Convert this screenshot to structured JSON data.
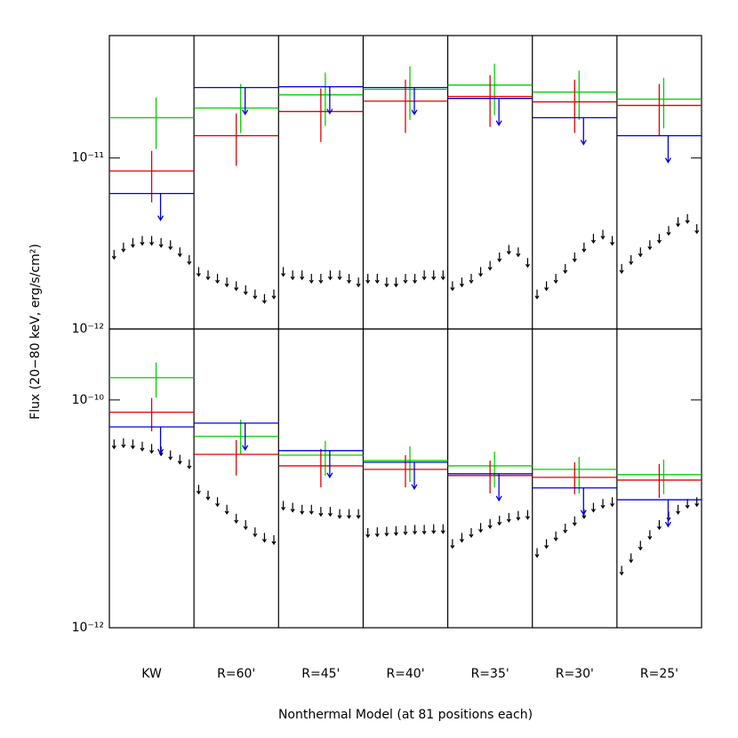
{
  "chart_data": [
    {
      "type": "errorbar",
      "log": true,
      "ylabel": "Flux (20−80 keV, erg/s/cm²)",
      "ylim": [
        1e-12,
        5.2e-11
      ],
      "yticks": [
        {
          "value": 1e-12,
          "label": "10⁻¹²"
        },
        {
          "value": 1e-11,
          "label": "10⁻¹¹"
        }
      ],
      "series": [
        {
          "color": "#00d000",
          "values": [
            1.72e-11,
            1.96e-11,
            2.34e-11,
            2.52e-11,
            2.67e-11,
            2.43e-11,
            2.21e-11
          ],
          "errors": [
            [
              1.13e-11,
              2.26e-11
            ],
            [
              1.4e-11,
              2.71e-11
            ],
            [
              1.54e-11,
              3.16e-11
            ],
            [
              1.67e-11,
              3.44e-11
            ],
            [
              1.78e-11,
              3.56e-11
            ],
            [
              1.67e-11,
              3.24e-11
            ],
            [
              1.49e-11,
              2.94e-11
            ]
          ]
        },
        {
          "color": "#e00000",
          "values": [
            8.4e-12,
            1.35e-11,
            1.87e-11,
            2.15e-11,
            2.29e-11,
            2.13e-11,
            2.03e-11
          ],
          "errors": [
            [
              5.5e-12,
              1.1e-11
            ],
            [
              9e-12,
              1.82e-11
            ],
            [
              1.24e-11,
              2.55e-11
            ],
            [
              1.4e-11,
              2.87e-11
            ],
            [
              1.52e-11,
              3.05e-11
            ],
            [
              1.4e-11,
              2.87e-11
            ],
            [
              1.35e-11,
              2.71e-11
            ]
          ]
        },
        {
          "color": "#0000e0",
          "upper_limit": true,
          "values": [
            6.2e-12,
            2.58e-11,
            2.61e-11,
            2.58e-11,
            2.23e-11,
            1.72e-11,
            1.35e-11
          ]
        }
      ],
      "models": {
        "color": "#000000",
        "upper_limit": true,
        "values": [
          [
            2.9e-12,
            3.2e-12,
            3.4e-12,
            3.5e-12,
            3.5e-12,
            3.4e-12,
            3.3e-12,
            3e-12,
            2.7e-12
          ],
          [
            2.3e-12,
            2.2e-12,
            2.1e-12,
            2e-12,
            1.9e-12,
            1.8e-12,
            1.7e-12,
            1.6e-12,
            1.7e-12
          ],
          [
            2.3e-12,
            2.2e-12,
            2.2e-12,
            2.1e-12,
            2.1e-12,
            2.2e-12,
            2.2e-12,
            2.1e-12,
            2e-12
          ],
          [
            2.1e-12,
            2.1e-12,
            2e-12,
            2e-12,
            2.1e-12,
            2.1e-12,
            2.2e-12,
            2.2e-12,
            2.2e-12
          ],
          [
            1.9e-12,
            2e-12,
            2.1e-12,
            2.3e-12,
            2.5e-12,
            2.8e-12,
            3.1e-12,
            3e-12,
            2.6e-12
          ],
          [
            1.7e-12,
            1.9e-12,
            2.1e-12,
            2.4e-12,
            2.8e-12,
            3.2e-12,
            3.6e-12,
            3.8e-12,
            3.5e-12
          ],
          [
            2.4e-12,
            2.7e-12,
            3e-12,
            3.3e-12,
            3.6e-12,
            4e-12,
            4.5e-12,
            4.7e-12,
            4.1e-12
          ]
        ]
      }
    },
    {
      "type": "errorbar",
      "log": true,
      "xlabel": "Nonthermal Model (at 81 positions each)",
      "categories": [
        "KW",
        "R=60'",
        "R=45'",
        "R=40'",
        "R=35'",
        "R=30'",
        "R=25'"
      ],
      "ylim": [
        1e-12,
        4.2e-10
      ],
      "yticks": [
        {
          "value": 1e-12,
          "label": "10⁻¹²"
        },
        {
          "value": 1e-10,
          "label": "10⁻¹⁰"
        }
      ],
      "series": [
        {
          "color": "#00d000",
          "values": [
            1.57e-10,
            4.79e-11,
            3.28e-11,
            2.94e-11,
            2.64e-11,
            2.46e-11,
            2.21e-11
          ],
          "errors": [
            [
              1.05e-10,
              2.13e-10
            ],
            [
              3.3e-11,
              6.7e-11
            ],
            [
              2.17e-11,
              4.37e-11
            ],
            [
              1.91e-11,
              3.92e-11
            ],
            [
              1.71e-11,
              3.52e-11
            ],
            [
              1.51e-11,
              3.16e-11
            ],
            [
              1.49e-11,
              3e-11
            ]
          ]
        },
        {
          "color": "#e00000",
          "values": [
            7.8e-11,
            3.33e-11,
            2.64e-11,
            2.46e-11,
            2.17e-11,
            2.09e-11,
            1.98e-11
          ],
          "errors": [
            [
              5.3e-11,
              1.04e-10
            ],
            [
              2.17e-11,
              4.45e-11
            ],
            [
              1.71e-11,
              3.72e-11
            ],
            [
              1.71e-11,
              3.28e-11
            ],
            [
              1.51e-11,
              2.94e-11
            ],
            [
              1.49e-11,
              2.84e-11
            ],
            [
              1.38e-11,
              2.74e-11
            ]
          ]
        },
        {
          "color": "#0000e0",
          "upper_limit": true,
          "values": [
            5.8e-11,
            6.26e-11,
            3.59e-11,
            2.84e-11,
            2.25e-11,
            1.69e-11,
            1.33e-11
          ]
        }
      ],
      "models": {
        "color": "#000000",
        "upper_limit": true,
        "values": [
          [
            4.5e-11,
            4.6e-11,
            4.5e-11,
            4.3e-11,
            4.1e-11,
            3.9e-11,
            3.6e-11,
            3.3e-11,
            3e-11
          ],
          [
            1.8e-11,
            1.6e-11,
            1.4e-11,
            1.2e-11,
            1e-11,
            8.8e-12,
            7.6e-12,
            6.8e-12,
            6.5e-12
          ],
          [
            1.3e-11,
            1.25e-11,
            1.2e-11,
            1.2e-11,
            1.15e-11,
            1.15e-11,
            1.1e-11,
            1.1e-11,
            1.1e-11
          ],
          [
            7.5e-12,
            7.6e-12,
            7.7e-12,
            7.8e-12,
            7.9e-12,
            8e-12,
            8e-12,
            8.1e-12,
            8.1e-12
          ],
          [
            6e-12,
            6.8e-12,
            7.5e-12,
            8.3e-12,
            9e-12,
            9.6e-12,
            1.02e-11,
            1.06e-11,
            1.08e-11
          ],
          [
            5e-12,
            6e-12,
            7e-12,
            8.2e-12,
            9.5e-12,
            1.1e-11,
            1.25e-11,
            1.35e-11,
            1.4e-11
          ],
          [
            3.5e-12,
            4.5e-12,
            5.8e-12,
            7.2e-12,
            8.8e-12,
            1.05e-11,
            1.2e-11,
            1.35e-11,
            1.4e-11
          ]
        ]
      }
    }
  ]
}
